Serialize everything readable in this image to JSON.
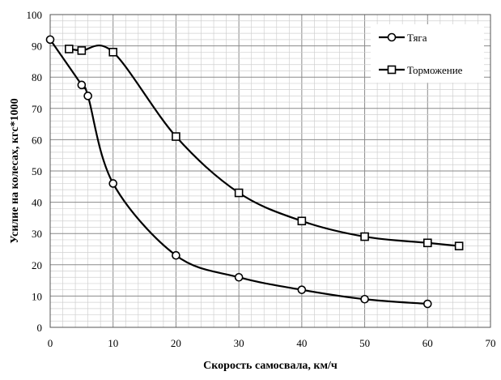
{
  "chart_data": {
    "type": "line",
    "xlabel": "Скорость самосвала, км/ч",
    "ylabel": "Усилие на колесах, кгс*1000",
    "xlim": [
      0,
      70
    ],
    "ylim": [
      0,
      100
    ],
    "xticks": [
      0,
      10,
      20,
      30,
      40,
      50,
      60,
      70
    ],
    "yticks": [
      0,
      10,
      20,
      30,
      40,
      50,
      60,
      70,
      80,
      90,
      100
    ],
    "grid": true,
    "legend_position": "top-right",
    "series": [
      {
        "name": "Тяга",
        "marker": "circle",
        "color": "#000000",
        "points": [
          [
            0,
            92
          ],
          [
            5,
            77.5
          ],
          [
            6,
            74
          ],
          [
            10,
            46
          ],
          [
            20,
            23
          ],
          [
            30,
            16
          ],
          [
            40,
            12
          ],
          [
            50,
            9
          ],
          [
            60,
            7.5
          ]
        ]
      },
      {
        "name": "Торможение",
        "marker": "square",
        "color": "#000000",
        "points": [
          [
            3,
            89
          ],
          [
            5,
            88.5
          ],
          [
            10,
            88
          ],
          [
            20,
            61
          ],
          [
            30,
            43
          ],
          [
            40,
            34
          ],
          [
            50,
            29
          ],
          [
            60,
            27
          ],
          [
            65,
            26
          ]
        ]
      }
    ]
  }
}
